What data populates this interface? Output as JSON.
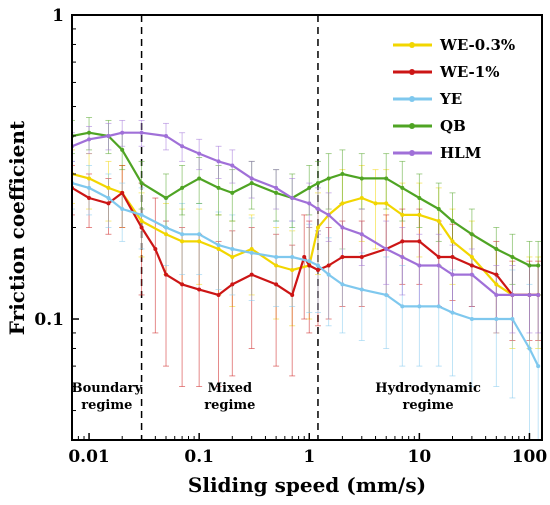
{
  "chart_data": {
    "type": "line",
    "title": "",
    "xlabel": "Sliding speed (mm/s)",
    "ylabel": "Friction coefficient",
    "x_scale": "log",
    "y_scale": "log",
    "xlim": [
      0.007,
      130
    ],
    "ylim": [
      0.04,
      1
    ],
    "x_ticks": [
      0.01,
      0.1,
      1,
      10,
      100
    ],
    "x_tick_labels": [
      "0.01",
      "0.1",
      "1",
      "10",
      "100"
    ],
    "y_ticks": [
      0.1,
      1
    ],
    "y_tick_labels": [
      "0.1",
      "1"
    ],
    "grid": false,
    "legend_position": "top-right",
    "regime_boundaries": [
      0.03,
      1.2
    ],
    "annotations": [
      {
        "lines": [
          "Boundary",
          "regime"
        ],
        "x": 0.0145
      },
      {
        "lines": [
          "Mixed",
          "regime"
        ],
        "x": 0.19
      },
      {
        "lines": [
          "Hydrodynamic",
          "regime"
        ],
        "x": 12
      }
    ],
    "series": [
      {
        "name": "WE-0.3%",
        "color": "#f2d600",
        "x": [
          0.007,
          0.01,
          0.015,
          0.02,
          0.03,
          0.05,
          0.07,
          0.1,
          0.15,
          0.2,
          0.3,
          0.5,
          0.7,
          1.0,
          1.2,
          1.5,
          2,
          3,
          4,
          5,
          7,
          10,
          15,
          20,
          30,
          50,
          70,
          100,
          120
        ],
        "y": [
          0.3,
          0.29,
          0.27,
          0.26,
          0.21,
          0.19,
          0.18,
          0.18,
          0.17,
          0.16,
          0.17,
          0.15,
          0.145,
          0.15,
          0.2,
          0.22,
          0.24,
          0.25,
          0.24,
          0.24,
          0.22,
          0.22,
          0.21,
          0.18,
          0.16,
          0.13,
          0.12,
          0.12,
          0.12
        ],
        "error": [
          0.06,
          0.06,
          0.06,
          0.06,
          0.05,
          0.05,
          0.05,
          0.05,
          0.05,
          0.05,
          0.05,
          0.05,
          0.05,
          0.05,
          0.06,
          0.07,
          0.07,
          0.07,
          0.07,
          0.07,
          0.06,
          0.06,
          0.06,
          0.05,
          0.05,
          0.04,
          0.04,
          0.04,
          0.04
        ]
      },
      {
        "name": "WE-1%",
        "color": "#cc1515",
        "x": [
          0.007,
          0.01,
          0.015,
          0.02,
          0.03,
          0.04,
          0.05,
          0.07,
          0.1,
          0.15,
          0.2,
          0.3,
          0.5,
          0.7,
          0.9,
          1.0,
          1.2,
          1.5,
          2,
          3,
          5,
          7,
          10,
          15,
          20,
          30,
          50,
          70,
          100,
          120
        ],
        "y": [
          0.27,
          0.25,
          0.24,
          0.26,
          0.2,
          0.17,
          0.14,
          0.13,
          0.125,
          0.12,
          0.13,
          0.14,
          0.13,
          0.12,
          0.16,
          0.15,
          0.145,
          0.15,
          0.16,
          0.16,
          0.17,
          0.18,
          0.18,
          0.16,
          0.16,
          0.15,
          0.14,
          0.12,
          0.12,
          0.12
        ],
        "error": [
          0.05,
          0.05,
          0.05,
          0.06,
          0.08,
          0.08,
          0.07,
          0.07,
          0.065,
          0.06,
          0.065,
          0.06,
          0.06,
          0.055,
          0.06,
          0.06,
          0.05,
          0.05,
          0.05,
          0.05,
          0.05,
          0.05,
          0.05,
          0.05,
          0.045,
          0.04,
          0.04,
          0.035,
          0.035,
          0.035
        ]
      },
      {
        "name": "YE",
        "color": "#7fc8ee",
        "x": [
          0.007,
          0.01,
          0.015,
          0.02,
          0.03,
          0.05,
          0.07,
          0.1,
          0.15,
          0.2,
          0.3,
          0.5,
          0.7,
          1.0,
          1.2,
          1.5,
          2,
          3,
          5,
          7,
          10,
          15,
          20,
          30,
          50,
          70,
          100,
          120
        ],
        "y": [
          0.28,
          0.27,
          0.25,
          0.23,
          0.22,
          0.2,
          0.19,
          0.19,
          0.175,
          0.17,
          0.165,
          0.16,
          0.16,
          0.155,
          0.15,
          0.14,
          0.13,
          0.125,
          0.12,
          0.11,
          0.11,
          0.11,
          0.105,
          0.1,
          0.1,
          0.1,
          0.08,
          0.07
        ],
        "error": [
          0.05,
          0.05,
          0.05,
          0.05,
          0.05,
          0.05,
          0.05,
          0.05,
          0.05,
          0.05,
          0.05,
          0.05,
          0.05,
          0.05,
          0.045,
          0.045,
          0.04,
          0.04,
          0.04,
          0.04,
          0.04,
          0.04,
          0.04,
          0.04,
          0.04,
          0.045,
          0.05,
          0.05
        ]
      },
      {
        "name": "QB",
        "color": "#4fa424",
        "x": [
          0.007,
          0.01,
          0.015,
          0.02,
          0.03,
          0.05,
          0.07,
          0.1,
          0.15,
          0.2,
          0.3,
          0.5,
          0.7,
          1.0,
          1.2,
          1.5,
          2,
          3,
          5,
          7,
          10,
          15,
          20,
          30,
          50,
          70,
          100,
          120
        ],
        "y": [
          0.4,
          0.41,
          0.4,
          0.36,
          0.28,
          0.25,
          0.27,
          0.29,
          0.27,
          0.26,
          0.28,
          0.26,
          0.25,
          0.27,
          0.28,
          0.29,
          0.3,
          0.29,
          0.29,
          0.27,
          0.25,
          0.23,
          0.21,
          0.19,
          0.17,
          0.16,
          0.15,
          0.15
        ],
        "error": [
          0.05,
          0.05,
          0.05,
          0.05,
          0.05,
          0.05,
          0.05,
          0.05,
          0.05,
          0.05,
          0.05,
          0.05,
          0.05,
          0.05,
          0.05,
          0.06,
          0.06,
          0.06,
          0.06,
          0.06,
          0.05,
          0.05,
          0.05,
          0.04,
          0.03,
          0.03,
          0.03,
          0.03
        ]
      },
      {
        "name": "HLM",
        "color": "#a070d8",
        "x": [
          0.007,
          0.01,
          0.015,
          0.02,
          0.03,
          0.05,
          0.07,
          0.1,
          0.15,
          0.2,
          0.3,
          0.5,
          0.7,
          1.0,
          1.2,
          1.5,
          2,
          3,
          5,
          7,
          10,
          15,
          20,
          30,
          50,
          70,
          100,
          120
        ],
        "y": [
          0.37,
          0.39,
          0.4,
          0.41,
          0.41,
          0.4,
          0.37,
          0.35,
          0.33,
          0.32,
          0.29,
          0.27,
          0.25,
          0.24,
          0.23,
          0.22,
          0.2,
          0.19,
          0.17,
          0.16,
          0.15,
          0.15,
          0.14,
          0.14,
          0.12,
          0.12,
          0.12,
          0.12
        ],
        "error": [
          0.04,
          0.04,
          0.04,
          0.04,
          0.04,
          0.04,
          0.04,
          0.04,
          0.04,
          0.04,
          0.04,
          0.04,
          0.04,
          0.04,
          0.04,
          0.04,
          0.04,
          0.04,
          0.04,
          0.04,
          0.04,
          0.04,
          0.035,
          0.03,
          0.03,
          0.03,
          0.03,
          0.03
        ]
      }
    ]
  }
}
